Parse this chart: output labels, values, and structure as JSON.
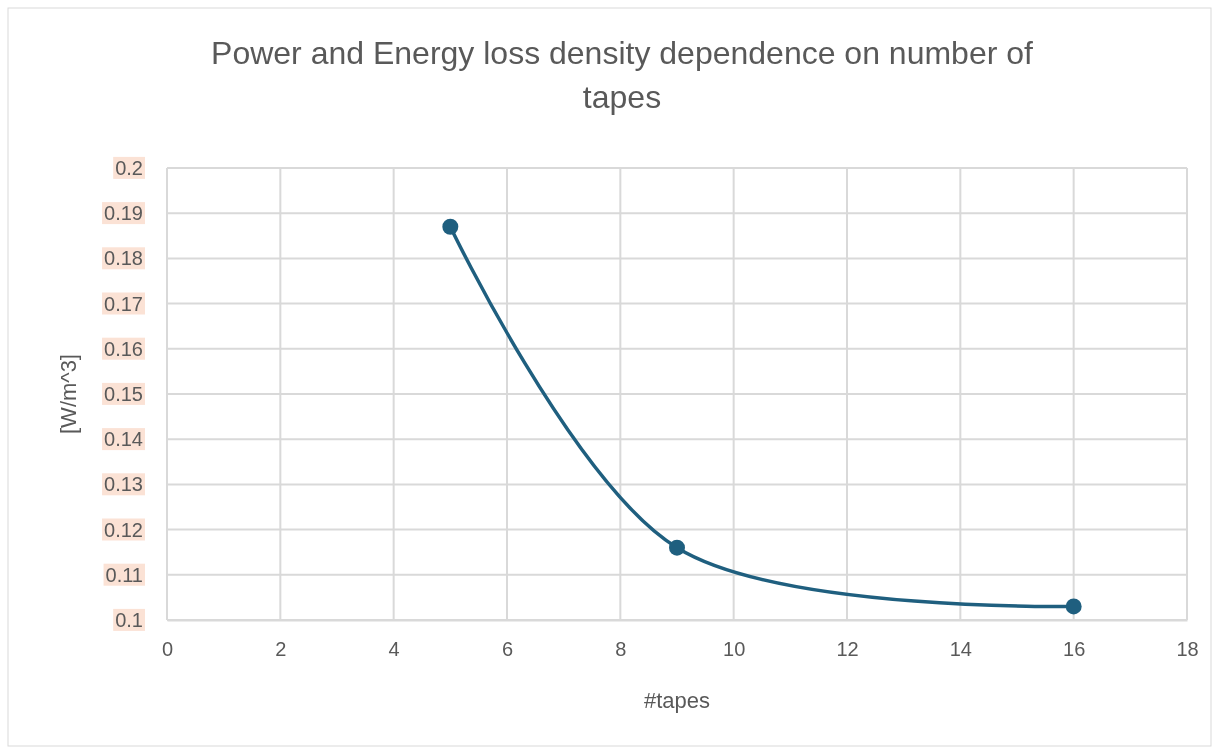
{
  "chart_data": {
    "type": "line",
    "title": "Power and Energy loss density dependence on number of tapes",
    "xlabel": "#tapes",
    "ylabel": "[W/m^3]",
    "x": [
      5,
      9,
      16
    ],
    "series": [
      {
        "color": "#1f5f7f",
        "values": [
          0.187,
          0.116,
          0.103
        ]
      }
    ],
    "xlim": [
      0,
      18
    ],
    "xticks": [
      0,
      2,
      4,
      6,
      8,
      10,
      12,
      14,
      16,
      18
    ],
    "ylim": [
      0.1,
      0.2
    ],
    "yticks": [
      0.1,
      0.11,
      0.12,
      0.13,
      0.14,
      0.15,
      0.16,
      0.17,
      0.18,
      0.19,
      0.2
    ],
    "grid": true,
    "marker": "circle",
    "line_style": "solid"
  }
}
